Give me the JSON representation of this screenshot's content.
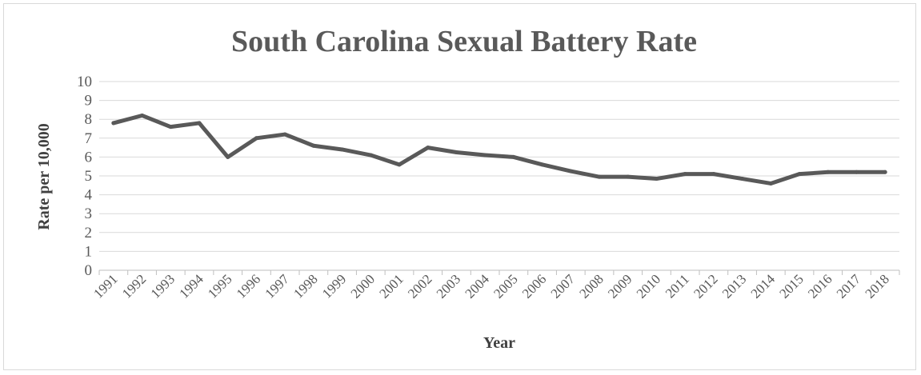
{
  "chart_data": {
    "type": "line",
    "title": "South Carolina Sexual Battery Rate",
    "xlabel": "Year",
    "ylabel": "Rate per 10,000",
    "ylim": [
      0,
      10
    ],
    "yticks": [
      0,
      1,
      2,
      3,
      4,
      5,
      6,
      7,
      8,
      9,
      10
    ],
    "grid": true,
    "categories": [
      "1991",
      "1992",
      "1993",
      "1994",
      "1995",
      "1996",
      "1997",
      "1998",
      "1999",
      "2000",
      "2001",
      "2002",
      "2003",
      "2004",
      "2005",
      "2006",
      "2007",
      "2008",
      "2009",
      "2010",
      "2011",
      "2012",
      "2013",
      "2014",
      "2015",
      "2016",
      "2017",
      "2018"
    ],
    "series": [
      {
        "values": [
          7.8,
          8.2,
          7.6,
          7.8,
          6.0,
          7.0,
          7.2,
          6.6,
          6.4,
          6.1,
          5.6,
          6.5,
          6.25,
          6.1,
          6.0,
          5.6,
          5.25,
          4.95,
          4.95,
          4.85,
          5.1,
          5.1,
          4.85,
          4.6,
          5.1,
          5.2,
          5.2,
          5.2
        ],
        "color": "#595959"
      }
    ]
  }
}
